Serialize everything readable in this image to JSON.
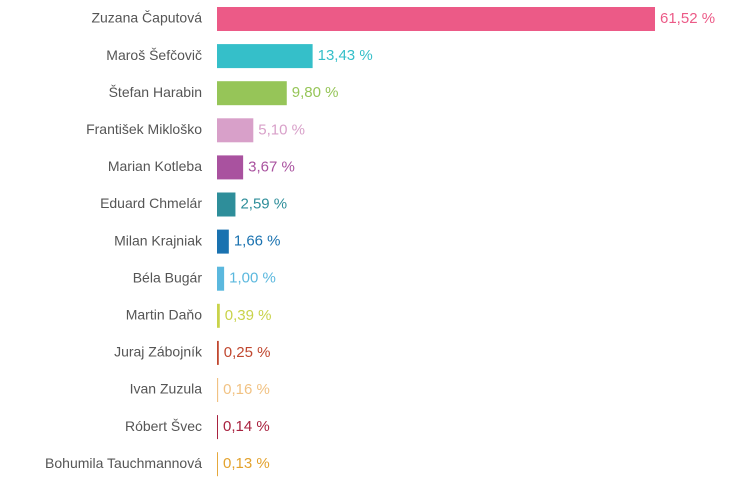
{
  "chart_data": {
    "type": "bar",
    "orientation": "horizontal",
    "categories": [
      "Zuzana Čaputová",
      "Maroš Šefčovič",
      "Štefan Harabin",
      "František Mikloško",
      "Marian Kotleba",
      "Eduard Chmelár",
      "Milan Krajniak",
      "Béla Bugár",
      "Martin Daňo",
      "Juraj Zábojník",
      "Ivan Zuzula",
      "Róbert Švec",
      "Bohumila Tauchmannová"
    ],
    "values": [
      61.52,
      13.43,
      9.8,
      5.1,
      3.67,
      2.59,
      1.66,
      1.0,
      0.39,
      0.25,
      0.16,
      0.14,
      0.13
    ],
    "value_labels": [
      "61,52 %",
      "13,43 %",
      "9,80 %",
      "5,10 %",
      "3,67 %",
      "2,59 %",
      "1,66 %",
      "1,00 %",
      "0,39 %",
      "0,25 %",
      "0,16 %",
      "0,14 %",
      "0,13 %"
    ],
    "colors": [
      "#ec5a87",
      "#35bfc9",
      "#96c558",
      "#d8a0c9",
      "#a9529f",
      "#2e8e9a",
      "#1a72b0",
      "#5bb8de",
      "#c9d34a",
      "#c0472f",
      "#f1c283",
      "#a8223f",
      "#e3a22d"
    ]
  }
}
